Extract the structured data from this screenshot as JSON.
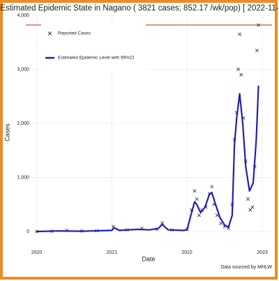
{
  "chart_data": {
    "type": "line",
    "title": "Estimated Epidemic State in Nagano  ( 3821 cases; 852.17 /wk/pop) [ 2022-11-",
    "x_label": "Date",
    "y_label": "Cases",
    "source": "Data sourced by MHLW",
    "xlim": [
      2019.93,
      2023.13
    ],
    "xticks": [
      2020,
      2021,
      2022,
      2023
    ],
    "ylim": [
      0,
      4000
    ],
    "yticks": [
      0,
      {
        "value": 1000,
        "label": "1,000"
      },
      {
        "value": 2000,
        "label": "2,000"
      },
      {
        "value": 3000,
        "label": "3,000"
      },
      {
        "value": 4000,
        "label": "4,000"
      }
    ],
    "grid": true,
    "legend": "top-left",
    "reference_line": {
      "value": 3821,
      "color": "#c8553d"
    },
    "series": [
      {
        "name": "Reported Cases",
        "type": "scatter",
        "color": "#333333",
        "x": [
          2020.0,
          2020.2,
          2020.4,
          2020.6,
          2020.8,
          2021.02,
          2021.2,
          2021.4,
          2021.6,
          2021.67,
          2021.8,
          2022.0,
          2022.06,
          2022.1,
          2022.13,
          2022.16,
          2022.2,
          2022.25,
          2022.3,
          2022.33,
          2022.36,
          2022.4,
          2022.45,
          2022.5,
          2022.55,
          2022.6,
          2022.63,
          2022.66,
          2022.68,
          2022.7,
          2022.72,
          2022.75,
          2022.78,
          2022.81,
          2022.84,
          2022.87,
          2022.9,
          2022.93,
          2022.95
        ],
        "values": [
          0,
          5,
          20,
          10,
          15,
          90,
          30,
          60,
          40,
          160,
          30,
          40,
          400,
          750,
          600,
          300,
          400,
          450,
          700,
          830,
          500,
          300,
          150,
          90,
          60,
          500,
          1700,
          2200,
          3000,
          3650,
          2900,
          2100,
          1300,
          600,
          400,
          450,
          1200,
          3350,
          3821
        ]
      },
      {
        "name": "Estimated Epidemic Level with 95%CI",
        "type": "line",
        "color": "#1f1fb4",
        "x": [
          2020.0,
          2020.3,
          2020.6,
          2021.0,
          2021.03,
          2021.1,
          2021.35,
          2021.5,
          2021.62,
          2021.67,
          2021.75,
          2021.95,
          2022.0,
          2022.05,
          2022.1,
          2022.13,
          2022.18,
          2022.24,
          2022.3,
          2022.33,
          2022.38,
          2022.44,
          2022.5,
          2022.55,
          2022.6,
          2022.63,
          2022.66,
          2022.7,
          2022.74,
          2022.78,
          2022.83,
          2022.88,
          2022.92,
          2022.95
        ],
        "values": [
          0,
          10,
          5,
          20,
          70,
          20,
          40,
          30,
          60,
          130,
          30,
          20,
          30,
          300,
          550,
          500,
          350,
          450,
          700,
          720,
          500,
          250,
          120,
          80,
          300,
          1600,
          2100,
          2550,
          2000,
          1200,
          750,
          900,
          1700,
          2700
        ]
      }
    ]
  }
}
